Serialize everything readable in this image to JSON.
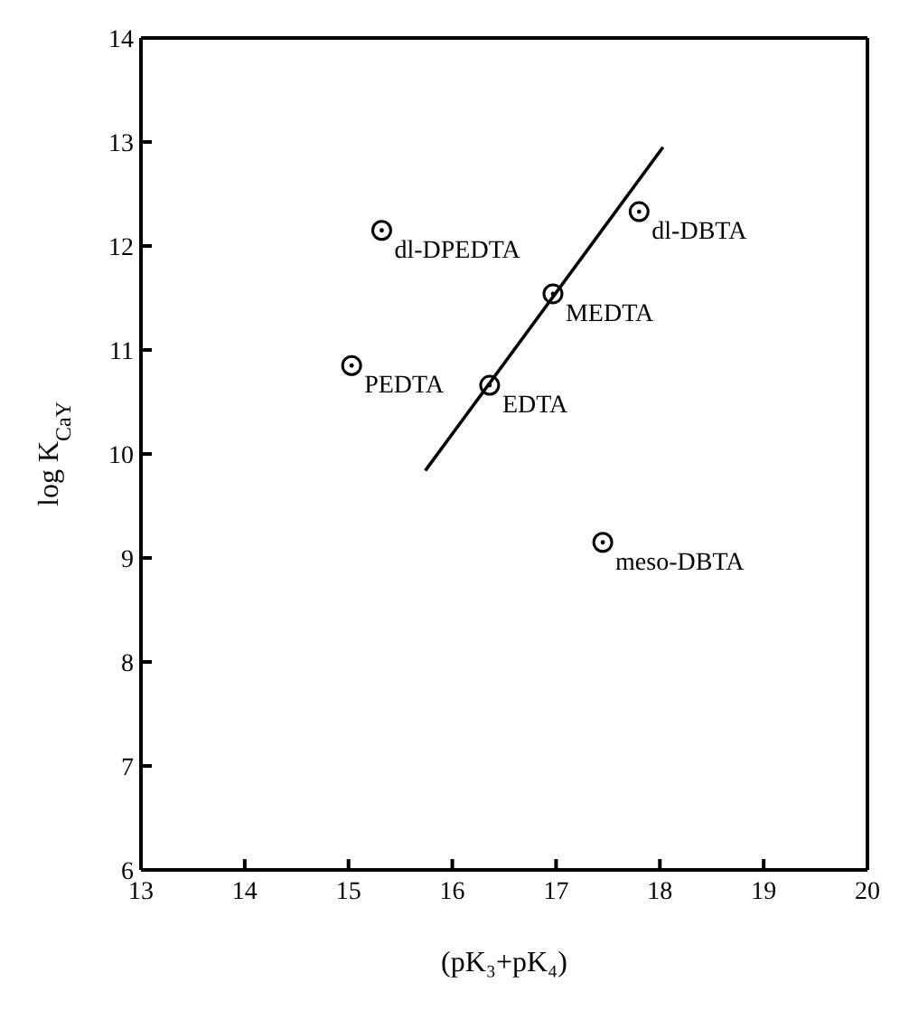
{
  "chart_data": {
    "type": "scatter",
    "xlabel": "(pK₃+pK₄)",
    "ylabel": "log K$_{CaY}$",
    "xlim": [
      13,
      20
    ],
    "xticks": [
      13,
      14,
      15,
      16,
      17,
      18,
      19,
      20
    ],
    "ylim": [
      6,
      14
    ],
    "yticks": [
      6,
      7,
      8,
      9,
      10,
      11,
      12,
      13,
      14
    ],
    "grid": false,
    "legend": false,
    "marker": "circle",
    "series": [
      {
        "color": "#000000",
        "x": [
          15.32,
          15.03,
          16.36,
          16.97,
          17.8,
          17.45
        ],
        "values": [
          12.15,
          10.85,
          10.66,
          11.54,
          12.33,
          9.15
        ]
      },
      {
        "type": "line",
        "color": "#000000",
        "x": [
          15.74,
          18.03
        ],
        "values": [
          9.84,
          12.95
        ],
        "marker": "none",
        "line_style": "solid"
      }
    ],
    "annotations": [
      {
        "text": "dl-DPEDTA",
        "x": 15.32,
        "y": 12.15
      },
      {
        "text": "PEDTA",
        "x": 15.03,
        "y": 10.85
      },
      {
        "text": "EDTA",
        "x": 16.36,
        "y": 10.66
      },
      {
        "text": "MEDTA",
        "x": 16.97,
        "y": 11.54
      },
      {
        "text": "dl-DBTA",
        "x": 17.8,
        "y": 12.33
      },
      {
        "text": "meso-DBTA",
        "x": 17.45,
        "y": 9.15
      }
    ]
  }
}
